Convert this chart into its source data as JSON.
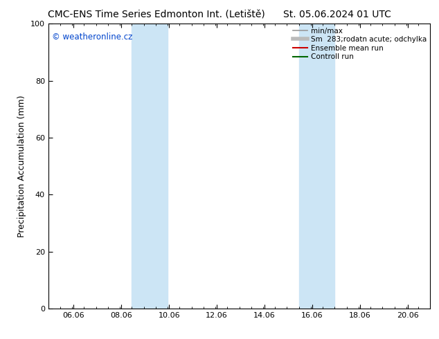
{
  "title_left": "CMC-ENS Time Series Edmonton Int. (Letiště)",
  "title_right": "St. 05.06.2024 01 UTC",
  "ylabel": "Precipitation Accumulation (mm)",
  "ylim": [
    0,
    100
  ],
  "xlim": [
    5.0,
    21.0
  ],
  "xticks": [
    6.06,
    8.06,
    10.06,
    12.06,
    14.06,
    16.06,
    18.06,
    20.06
  ],
  "xtick_labels": [
    "06.06",
    "08.06",
    "10.06",
    "12.06",
    "14.06",
    "16.06",
    "18.06",
    "20.06"
  ],
  "yticks": [
    0,
    20,
    40,
    60,
    80,
    100
  ],
  "shaded_regions": [
    {
      "xmin": 8.5,
      "xmax": 10.0,
      "color": "#cce5f5"
    },
    {
      "xmin": 15.5,
      "xmax": 17.0,
      "color": "#cce5f5"
    }
  ],
  "watermark_text": "© weatheronline.cz",
  "watermark_color": "#0044cc",
  "legend_entries": [
    {
      "label": "min/max",
      "color": "#999999",
      "lw": 1.2
    },
    {
      "label": "Sm  283;rodatn acute; odchylka",
      "color": "#bbbbbb",
      "lw": 4
    },
    {
      "label": "Ensemble mean run",
      "color": "#cc0000",
      "lw": 1.5
    },
    {
      "label": "Controll run",
      "color": "#006600",
      "lw": 1.5
    }
  ],
  "bg_color": "#ffffff",
  "plot_bg_color": "#ffffff",
  "title_fontsize": 10,
  "tick_fontsize": 8,
  "ylabel_fontsize": 9,
  "legend_fontsize": 7.5
}
